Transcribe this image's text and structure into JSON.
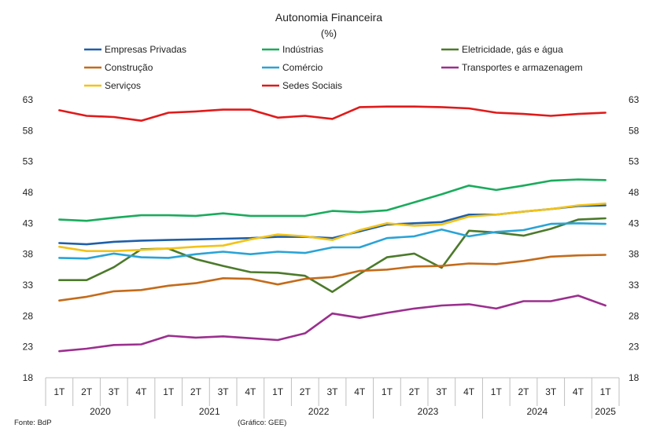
{
  "chart_data": {
    "type": "line",
    "title": "Autonomia Financeira",
    "subtitle": "(%)",
    "ylim": [
      18,
      63
    ],
    "yticks": [
      18,
      23,
      28,
      33,
      38,
      43,
      48,
      53,
      58,
      63
    ],
    "grid": false,
    "legend_position": "top",
    "categories": [
      "1T",
      "2T",
      "3T",
      "4T",
      "1T",
      "2T",
      "3T",
      "4T",
      "1T",
      "2T",
      "3T",
      "4T",
      "1T",
      "2T",
      "3T",
      "4T",
      "1T",
      "2T",
      "3T",
      "4T",
      "1T"
    ],
    "years": [
      {
        "label": "2020",
        "span": 4
      },
      {
        "label": "2021",
        "span": 4
      },
      {
        "label": "2022",
        "span": 4
      },
      {
        "label": "2023",
        "span": 4
      },
      {
        "label": "2024",
        "span": 4
      },
      {
        "label": "2025",
        "span": 1
      }
    ],
    "series": [
      {
        "name": "Empresas Privadas",
        "color": "#1f5fa8",
        "values": [
          39.8,
          39.6,
          40.0,
          40.2,
          40.3,
          40.4,
          40.5,
          40.6,
          40.8,
          40.8,
          40.6,
          41.7,
          42.8,
          43.0,
          43.2,
          44.4,
          44.4,
          44.9,
          45.3,
          45.8,
          45.9
        ]
      },
      {
        "name": "Indústrias",
        "color": "#1aab5c",
        "values": [
          43.6,
          43.4,
          43.9,
          44.3,
          44.3,
          44.2,
          44.6,
          44.2,
          44.2,
          44.2,
          45.0,
          44.8,
          45.1,
          46.4,
          47.7,
          49.1,
          48.4,
          49.1,
          49.9,
          50.1,
          50.0
        ]
      },
      {
        "name": "Eletricidade, gás e água",
        "color": "#4c7a2b",
        "values": [
          33.8,
          33.8,
          35.9,
          38.8,
          38.9,
          37.2,
          36.1,
          35.1,
          35.0,
          34.5,
          31.9,
          34.8,
          37.5,
          38.1,
          35.8,
          41.8,
          41.5,
          41.0,
          42.1,
          43.6,
          43.8
        ]
      },
      {
        "name": "Construção",
        "color": "#c46b1a",
        "values": [
          30.5,
          31.1,
          32.0,
          32.2,
          32.9,
          33.3,
          34.1,
          34.0,
          33.1,
          34.0,
          34.3,
          35.3,
          35.5,
          36.0,
          36.1,
          36.5,
          36.4,
          36.9,
          37.6,
          37.8,
          37.9
        ]
      },
      {
        "name": "Comércio",
        "color": "#2aa3d6",
        "values": [
          37.4,
          37.3,
          38.1,
          37.5,
          37.4,
          38.0,
          38.4,
          38.0,
          38.4,
          38.2,
          39.1,
          39.1,
          40.6,
          40.9,
          42.0,
          40.9,
          41.6,
          41.9,
          42.9,
          43.0,
          42.9
        ]
      },
      {
        "name": "Transportes e armazenagem",
        "color": "#9b2f8e",
        "values": [
          22.3,
          22.7,
          23.3,
          23.4,
          24.8,
          24.5,
          24.7,
          24.4,
          24.1,
          25.2,
          28.4,
          27.7,
          28.5,
          29.2,
          29.7,
          29.9,
          29.2,
          30.4,
          30.4,
          31.3,
          29.7
        ]
      },
      {
        "name": "Serviços",
        "color": "#f2c318",
        "values": [
          39.2,
          38.5,
          38.5,
          38.7,
          38.9,
          39.2,
          39.4,
          40.4,
          41.2,
          40.9,
          40.3,
          41.9,
          43.0,
          42.6,
          42.8,
          44.1,
          44.4,
          44.9,
          45.3,
          45.9,
          46.2
        ]
      },
      {
        "name": "Sedes Sociais",
        "color": "#e01a1a",
        "values": [
          61.3,
          60.4,
          60.2,
          59.6,
          60.9,
          61.1,
          61.4,
          61.4,
          60.1,
          60.4,
          59.9,
          61.8,
          61.9,
          61.9,
          61.8,
          61.6,
          60.9,
          60.7,
          60.4,
          60.7,
          60.9
        ]
      }
    ]
  },
  "footer": {
    "source": "Fonte: BdP",
    "credit": "(Gráfico: GEE)"
  }
}
